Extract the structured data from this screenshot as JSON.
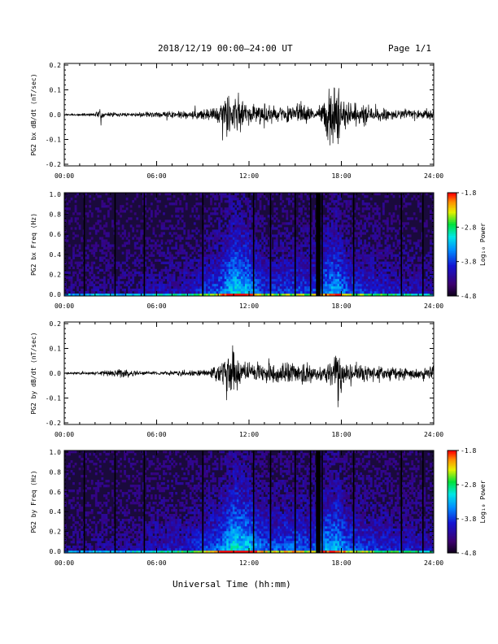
{
  "header": {
    "title": "2018/12/19   00:00–24:00 UT",
    "page_label": "Page 1/1"
  },
  "xlabel": "Universal Time (hh:mm)",
  "colors": {
    "background": "#ffffff",
    "trace": "#000000",
    "spectrogram_floor": "#1a0a3c"
  },
  "chart_data": [
    {
      "type": "line",
      "panel": "bx_dbdt",
      "ylabel": "PG2 bx dB/dt (nT/sec)",
      "xlim": [
        0,
        24
      ],
      "ylim": [
        -0.2,
        0.2
      ],
      "x_ticks": [
        "00:00",
        "06:00",
        "12:00",
        "18:00",
        "24:00"
      ],
      "y_ticks": [
        "-0.2",
        "-0.1",
        "0.0",
        "0.1",
        "0.2"
      ],
      "envelope_hours": [
        0,
        2,
        2.4,
        2.6,
        4,
        6,
        8,
        9.5,
        10,
        10.5,
        11,
        11.5,
        12,
        13,
        14,
        15,
        15.5,
        16,
        16.3,
        17,
        17.5,
        17.8,
        18,
        18.5,
        19,
        20,
        21,
        22,
        23,
        24
      ],
      "envelope_amplitude": [
        0.005,
        0.008,
        0.04,
        0.01,
        0.01,
        0.015,
        0.02,
        0.03,
        0.06,
        0.1,
        0.1,
        0.08,
        0.05,
        0.05,
        0.04,
        0.05,
        0.06,
        0.04,
        0.01,
        0.1,
        0.17,
        0.18,
        0.06,
        0.06,
        0.06,
        0.04,
        0.03,
        0.03,
        0.025,
        0.035
      ]
    },
    {
      "type": "heatmap",
      "panel": "bx_spectrogram",
      "ylabel": "PG2 bx Freq (Hz)",
      "xlim": [
        0,
        24
      ],
      "ylim": [
        0,
        1
      ],
      "x_ticks": [
        "00:00",
        "06:00",
        "12:00",
        "18:00",
        "24:00"
      ],
      "y_ticks": [
        "0.0",
        "0.2",
        "0.4",
        "0.6",
        "0.8",
        "1.0"
      ],
      "colorbar": {
        "label": "Log₁₀ Power",
        "range": [
          -4.8,
          -1.8
        ],
        "ticks": [
          "-1.8",
          "-2.8",
          "-3.8",
          "-4.8"
        ]
      },
      "data_gap_hours": [
        1.3,
        3.3,
        5.2,
        9.0,
        12.3,
        13.4,
        15.0,
        16.0,
        16.5,
        16.75,
        18.8,
        21.9,
        23.3
      ],
      "wide_gap_hours": [
        16.35,
        16.65
      ],
      "activity_hours": [
        0,
        2,
        4,
        6,
        8,
        10,
        11,
        12,
        13,
        14,
        15,
        16,
        17,
        17.7,
        18.5,
        20,
        22,
        24
      ],
      "activity_level": [
        0.15,
        0.2,
        0.2,
        0.3,
        0.35,
        0.6,
        0.95,
        0.85,
        0.5,
        0.5,
        0.55,
        0.5,
        0.75,
        0.85,
        0.55,
        0.45,
        0.35,
        0.3
      ]
    },
    {
      "type": "line",
      "panel": "by_dbdt",
      "ylabel": "PG2 by dB/dt (nT/sec)",
      "xlim": [
        0,
        24
      ],
      "ylim": [
        -0.2,
        0.2
      ],
      "x_ticks": [
        "00:00",
        "06:00",
        "12:00",
        "18:00",
        "24:00"
      ],
      "y_ticks": [
        "-0.2",
        "-0.1",
        "0.0",
        "0.1",
        "0.2"
      ],
      "envelope_hours": [
        0,
        2,
        3,
        4,
        5,
        6,
        8,
        9.5,
        10,
        10.5,
        11,
        11.5,
        12,
        13,
        14,
        15,
        15.5,
        16,
        16.5,
        17,
        17.5,
        17.8,
        18,
        18.5,
        19,
        20,
        21,
        22,
        23,
        24
      ],
      "envelope_amplitude": [
        0.005,
        0.008,
        0.02,
        0.02,
        0.01,
        0.01,
        0.015,
        0.02,
        0.05,
        0.1,
        0.12,
        0.08,
        0.05,
        0.05,
        0.05,
        0.06,
        0.08,
        0.05,
        0.03,
        0.05,
        0.1,
        0.16,
        0.08,
        0.06,
        0.05,
        0.04,
        0.04,
        0.03,
        0.03,
        0.05
      ]
    },
    {
      "type": "heatmap",
      "panel": "by_spectrogram",
      "ylabel": "PG2 by Freq (Hz)",
      "xlim": [
        0,
        24
      ],
      "ylim": [
        0,
        1
      ],
      "x_ticks": [
        "00:00",
        "06:00",
        "12:00",
        "18:00",
        "24:00"
      ],
      "y_ticks": [
        "0.0",
        "0.2",
        "0.4",
        "0.6",
        "0.8",
        "1.0"
      ],
      "colorbar": {
        "label": "Log₁₀ Power",
        "range": [
          -4.8,
          -1.8
        ],
        "ticks": [
          "-1.8",
          "-2.8",
          "-3.8",
          "-4.8"
        ]
      },
      "data_gap_hours": [
        1.3,
        3.3,
        5.2,
        9.0,
        12.3,
        13.4,
        15.0,
        16.0,
        16.5,
        16.75,
        18.8,
        21.9,
        23.3
      ],
      "wide_gap_hours": [
        16.35,
        16.65
      ],
      "activity_hours": [
        0,
        2,
        4,
        6,
        8,
        10,
        11,
        12,
        13,
        14,
        15,
        16,
        17,
        17.7,
        18.5,
        20,
        22,
        24
      ],
      "activity_level": [
        0.15,
        0.2,
        0.25,
        0.35,
        0.4,
        0.65,
        1.0,
        0.9,
        0.6,
        0.6,
        0.65,
        0.55,
        0.8,
        0.85,
        0.6,
        0.5,
        0.4,
        0.35
      ]
    }
  ]
}
